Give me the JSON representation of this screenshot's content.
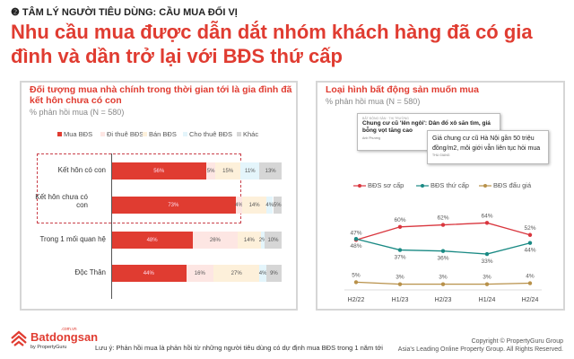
{
  "header": {
    "kicker": "❷ TÂM LÝ NGƯỜI TIÊU DÙNG: CẦU MUA ĐỔI VỊ",
    "title": "Nhu cầu mua được dẫn dắt nhóm khách hàng đã có gia đình và dần trở lại với BĐS thứ cấp"
  },
  "chart_data": [
    {
      "type": "bar",
      "stacked": true,
      "orientation": "horizontal",
      "title": "Đối tượng mua nhà chính trong thời gian tới là gia đình đã kết hôn chưa có con",
      "subtitle": "% phản hồi mua (N = 580)",
      "categories": [
        "Kết hôn có con",
        "Kết hôn chưa có con",
        "Trong 1 mối quan hệ",
        "Độc Thân"
      ],
      "series": [
        {
          "name": "Mua BĐS",
          "color": "#e03c31",
          "values": [
            56,
            73,
            48,
            44
          ]
        },
        {
          "name": "Đi thuê BĐS",
          "color": "#fde6e3",
          "values": [
            5,
            4,
            26,
            16
          ]
        },
        {
          "name": "Bán BĐS",
          "color": "#fdf0da",
          "values": [
            15,
            14,
            14,
            27
          ]
        },
        {
          "name": "Cho thuê BĐS",
          "color": "#e4f5fb",
          "values": [
            11,
            4,
            2,
            4
          ]
        },
        {
          "name": "Khác",
          "color": "#d6d6d6",
          "values": [
            13,
            5,
            10,
            9
          ]
        }
      ],
      "legend": "top",
      "xlim": [
        0,
        100
      ]
    },
    {
      "type": "line",
      "title": "Loại hình bất động sản muốn mua",
      "subtitle": "% phản hồi mua (N = 580)",
      "categories": [
        "H2/22",
        "H1/23",
        "H2/23",
        "H1/24",
        "H2/24"
      ],
      "series": [
        {
          "name": "BĐS sơ cấp",
          "color": "#d9363e",
          "values": [
            47,
            60,
            62,
            64,
            52
          ]
        },
        {
          "name": "BĐS thứ cấp",
          "color": "#1a8a84",
          "values": [
            48,
            37,
            36,
            33,
            44
          ]
        },
        {
          "name": "BĐS đấu giá",
          "color": "#b8914a",
          "values": [
            5,
            3,
            3,
            3,
            4
          ]
        }
      ],
      "legend": "top",
      "ylim": [
        0,
        70
      ]
    }
  ],
  "news": [
    {
      "tag": "BẤT ĐỘNG SẢN · THỊ TRƯỜNG",
      "headline": "Chung cư cũ 'lên ngôi': Dân đổ xô săn tìm, giá bỗng vọt tăng cao",
      "author": "Anh Phương"
    },
    {
      "headline": "Giá chung cư cũ Hà Nội gần 50 triệu đồng/m2, môi giới vẫn liên tục hỏi mua",
      "author": "THU GIANG"
    }
  ],
  "footer": {
    "note": "Lưu ý: Phản hồi mua là phản hồi từ những người tiêu dùng có dự định mua BĐS trong 1 năm tới",
    "copyright": "Copyright © PropertyGuru Group",
    "tagline": "Asia's Leading Online Property Group. All Rights Reserved.",
    "logo": "Batdongsan",
    "logo_domain": ".com.vn",
    "logo_by": "by PropertyGuru"
  }
}
